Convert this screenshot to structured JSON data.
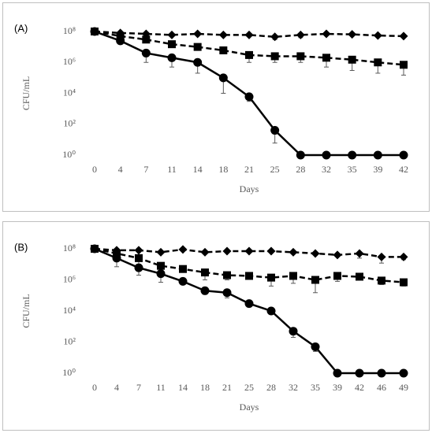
{
  "chart_data": [
    {
      "type": "line",
      "label": "(A)",
      "x_label": "Days",
      "y_label": "CFU/mL",
      "yscale": "log",
      "grid": false,
      "categories": [
        "0",
        "4",
        "7",
        "11",
        "14",
        "18",
        "21",
        "25",
        "28",
        "32",
        "35",
        "39",
        "42"
      ],
      "ylim": [
        1,
        100000000
      ],
      "yticks": [
        {
          "value": 1,
          "label": "10⁰"
        },
        {
          "value": 100,
          "label": "10²"
        },
        {
          "value": 10000,
          "label": "10⁴"
        },
        {
          "value": 1000000,
          "label": "10⁶"
        },
        {
          "value": 100000000,
          "label": "10⁸"
        }
      ],
      "series": [
        {
          "color": "#000000",
          "marker": "diamond",
          "dash": "dashed",
          "values": [
            100000000,
            80000000,
            70000000,
            60000000,
            70000000,
            60000000,
            60000000,
            45000000,
            60000000,
            70000000,
            65000000,
            55000000,
            50000000
          ],
          "errors": [
            null,
            null,
            null,
            null,
            null,
            null,
            null,
            15000000,
            20000000,
            null,
            null,
            null,
            null
          ]
        },
        {
          "color": "#000000",
          "marker": "square",
          "dash": "dashed",
          "values": [
            100000000,
            50000000,
            30000000,
            15000000,
            10000000,
            6000000,
            3000000,
            2500000,
            2500000,
            2000000,
            1500000,
            1000000,
            700000
          ],
          "errors": [
            null,
            null,
            10000000,
            5000000,
            null,
            null,
            2000000,
            1500000,
            1500000,
            1500000,
            1200000,
            800000,
            550000
          ]
        },
        {
          "color": "#000000",
          "marker": "circle",
          "dash": "solid",
          "values": [
            100000000,
            25000000,
            4000000,
            2000000,
            1000000,
            100000,
            6000,
            40,
            1,
            1,
            1,
            1,
            1
          ],
          "errors": [
            null,
            null,
            3000000,
            1500000,
            800000,
            90000,
            3000,
            34,
            null,
            null,
            null,
            null,
            null
          ]
        }
      ]
    },
    {
      "type": "line",
      "label": "(B)",
      "x_label": "Days",
      "y_label": "CFU/mL",
      "yscale": "log",
      "grid": false,
      "categories": [
        "0",
        "4",
        "7",
        "11",
        "14",
        "18",
        "21",
        "25",
        "28",
        "32",
        "35",
        "39",
        "42",
        "46",
        "49"
      ],
      "ylim": [
        1,
        100000000
      ],
      "yticks": [
        {
          "value": 1,
          "label": "10⁰"
        },
        {
          "value": 100,
          "label": "10²"
        },
        {
          "value": 10000,
          "label": "10⁴"
        },
        {
          "value": 1000000,
          "label": "10⁶"
        },
        {
          "value": 100000000,
          "label": "10⁸"
        }
      ],
      "series": [
        {
          "color": "#000000",
          "marker": "diamond",
          "dash": "dashed",
          "values": [
            100000000,
            80000000,
            80000000,
            60000000,
            90000000,
            60000000,
            70000000,
            70000000,
            70000000,
            60000000,
            50000000,
            40000000,
            50000000,
            30000000,
            30000000
          ],
          "errors": [
            null,
            null,
            null,
            null,
            null,
            null,
            null,
            null,
            null,
            null,
            null,
            null,
            25000000,
            18000000,
            10000000
          ]
        },
        {
          "color": "#000000",
          "marker": "square",
          "dash": "dashed",
          "values": [
            100000000,
            50000000,
            25000000,
            8000000,
            5000000,
            3000000,
            2000000,
            1800000,
            1400000,
            1800000,
            1000000,
            1800000,
            1600000,
            900000,
            700000
          ],
          "errors": [
            null,
            null,
            15000000,
            5000000,
            null,
            2000000,
            1000000,
            null,
            1000000,
            1200000,
            850000,
            1000000,
            null,
            400000,
            300000
          ]
        },
        {
          "color": "#000000",
          "marker": "circle",
          "dash": "solid",
          "values": [
            100000000,
            25000000,
            6000000,
            2500000,
            800000,
            200000,
            150000,
            30000,
            10000,
            500,
            50,
            1,
            1,
            1,
            1
          ],
          "errors": [
            null,
            18000000,
            4000000,
            1800000,
            null,
            null,
            80000,
            null,
            null,
            300,
            25,
            null,
            null,
            null,
            null
          ]
        }
      ]
    }
  ]
}
